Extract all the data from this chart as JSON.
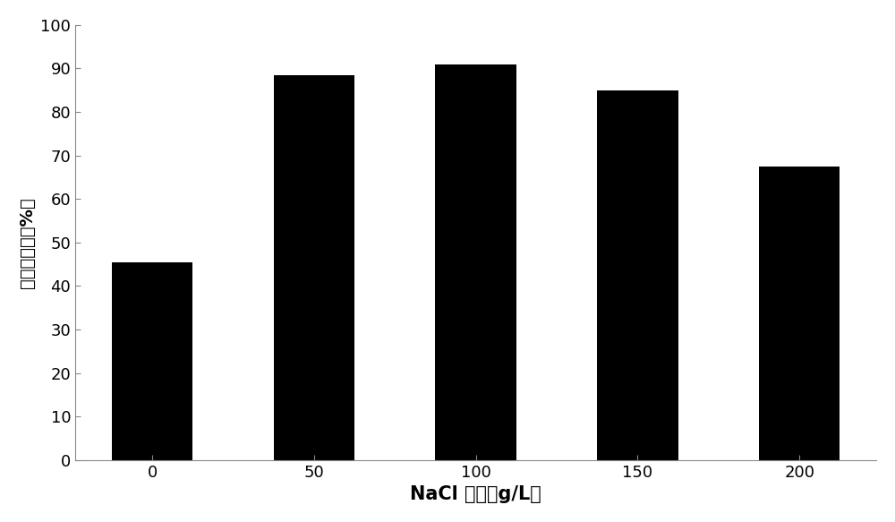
{
  "categories": [
    "0",
    "50",
    "100",
    "150",
    "200"
  ],
  "values": [
    45.5,
    88.5,
    91.0,
    85.0,
    67.5
  ],
  "bar_color": "#000000",
  "bar_width": 0.5,
  "xlabel": "NaCl 浓度（g/L）",
  "ylabel": "苯酚降解率（%）",
  "ylim": [
    0,
    100
  ],
  "yticks": [
    0,
    10,
    20,
    30,
    40,
    50,
    60,
    70,
    80,
    90,
    100
  ],
  "xlabel_fontsize": 15,
  "ylabel_fontsize": 14,
  "tick_fontsize": 13,
  "background_color": "#ffffff",
  "edge_color": "none"
}
